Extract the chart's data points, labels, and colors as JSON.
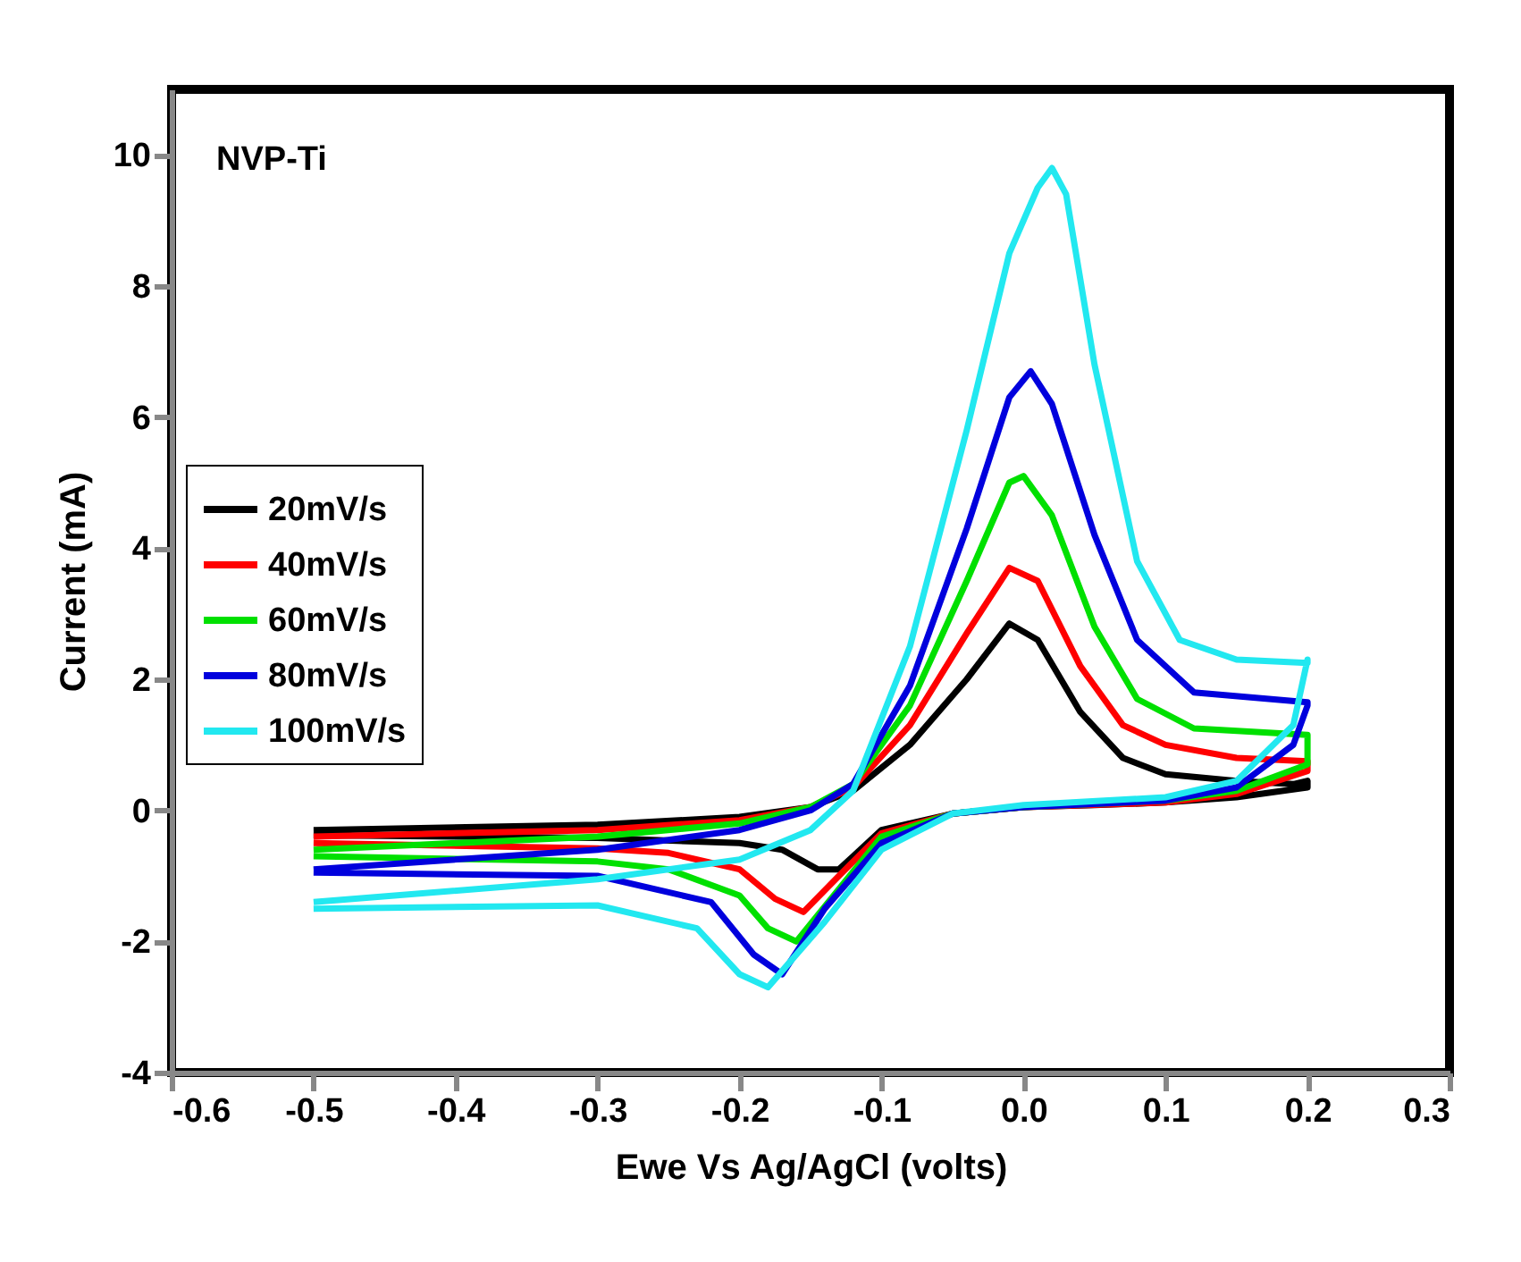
{
  "chart_data": {
    "type": "line",
    "xlabel": "Ewe Vs Ag/AgCl (volts)",
    "ylabel": "Current (mA)",
    "annotations": [
      "NVP-Ti"
    ],
    "xlim": [
      -0.6,
      0.3
    ],
    "xticks": [
      -0.6,
      -0.5,
      -0.4,
      -0.3,
      -0.2,
      -0.1,
      {
        "value": 0,
        "label": "0.0"
      },
      0.1,
      0.2,
      0.3
    ],
    "ylim": [
      -4,
      11
    ],
    "yticks": [
      -4,
      -2,
      0,
      2,
      4,
      6,
      8,
      10
    ],
    "grid": false,
    "legend": "left",
    "marker": "none",
    "line_style": "solid",
    "series": [
      {
        "name": "20mV/s",
        "color": "#000000",
        "x": [
          -0.5,
          -0.3,
          -0.2,
          -0.15,
          -0.12,
          -0.08,
          -0.04,
          -0.01,
          0.01,
          0.04,
          0.07,
          0.1,
          0.15,
          0.19,
          0.2,
          0.2,
          0.15,
          0.1,
          0.05,
          0.0,
          -0.05,
          -0.1,
          -0.12,
          -0.13,
          -0.145,
          -0.17,
          -0.2,
          -0.3,
          -0.5
        ],
        "values": [
          -0.3,
          -0.22,
          -0.1,
          0.05,
          0.3,
          1.0,
          2.0,
          2.85,
          2.6,
          1.5,
          0.8,
          0.55,
          0.45,
          0.4,
          0.45,
          0.35,
          0.2,
          0.12,
          0.08,
          0.05,
          -0.05,
          -0.3,
          -0.7,
          -0.9,
          -0.9,
          -0.6,
          -0.5,
          -0.42,
          -0.38
        ]
      },
      {
        "name": "40mV/s",
        "color": "#ff0000",
        "x": [
          -0.5,
          -0.3,
          -0.2,
          -0.15,
          -0.12,
          -0.08,
          -0.04,
          -0.01,
          0.01,
          0.04,
          0.07,
          0.1,
          0.15,
          0.2,
          0.2,
          0.15,
          0.1,
          0.0,
          -0.05,
          -0.1,
          -0.13,
          -0.155,
          -0.175,
          -0.2,
          -0.25,
          -0.3,
          -0.5
        ],
        "values": [
          -0.4,
          -0.3,
          -0.15,
          0.05,
          0.35,
          1.3,
          2.7,
          3.7,
          3.5,
          2.2,
          1.3,
          1.0,
          0.8,
          0.75,
          0.6,
          0.25,
          0.12,
          0.05,
          -0.05,
          -0.35,
          -1.0,
          -1.55,
          -1.35,
          -0.9,
          -0.65,
          -0.58,
          -0.5
        ]
      },
      {
        "name": "60mV/s",
        "color": "#00e000",
        "x": [
          -0.5,
          -0.3,
          -0.2,
          -0.15,
          -0.12,
          -0.08,
          -0.04,
          -0.01,
          0.0,
          0.02,
          0.05,
          0.08,
          0.12,
          0.2,
          0.2,
          0.15,
          0.1,
          0.0,
          -0.05,
          -0.1,
          -0.13,
          -0.16,
          -0.18,
          -0.2,
          -0.25,
          -0.3,
          -0.5
        ],
        "values": [
          -0.6,
          -0.4,
          -0.2,
          0.05,
          0.4,
          1.6,
          3.5,
          5.0,
          5.1,
          4.5,
          2.8,
          1.7,
          1.25,
          1.15,
          0.7,
          0.3,
          0.15,
          0.05,
          -0.05,
          -0.4,
          -1.2,
          -2.0,
          -1.8,
          -1.3,
          -0.9,
          -0.78,
          -0.7
        ]
      },
      {
        "name": "80mV/s",
        "color": "#0000dd",
        "x": [
          -0.5,
          -0.3,
          -0.2,
          -0.15,
          -0.12,
          -0.08,
          -0.04,
          -0.01,
          0.005,
          0.02,
          0.05,
          0.08,
          0.12,
          0.2,
          0.2,
          0.19,
          0.15,
          0.1,
          0.0,
          -0.05,
          -0.1,
          -0.14,
          -0.17,
          -0.19,
          -0.22,
          -0.3,
          -0.5
        ],
        "values": [
          -0.9,
          -0.6,
          -0.3,
          0.0,
          0.4,
          1.9,
          4.3,
          6.3,
          6.7,
          6.2,
          4.2,
          2.6,
          1.8,
          1.65,
          1.6,
          1.0,
          0.35,
          0.15,
          0.05,
          -0.05,
          -0.5,
          -1.5,
          -2.5,
          -2.2,
          -1.4,
          -1.0,
          -0.95
        ]
      },
      {
        "name": "100mV/s",
        "color": "#22e8f0",
        "x": [
          -0.5,
          -0.3,
          -0.2,
          -0.15,
          -0.12,
          -0.08,
          -0.04,
          -0.01,
          0.01,
          0.02,
          0.03,
          0.05,
          0.08,
          0.11,
          0.15,
          0.2,
          0.2,
          0.19,
          0.15,
          0.1,
          0.0,
          -0.05,
          -0.1,
          -0.14,
          -0.18,
          -0.2,
          -0.23,
          -0.3,
          -0.5
        ],
        "values": [
          -1.4,
          -1.05,
          -0.75,
          -0.3,
          0.3,
          2.5,
          5.8,
          8.5,
          9.5,
          9.8,
          9.4,
          6.8,
          3.8,
          2.6,
          2.3,
          2.25,
          2.3,
          1.3,
          0.45,
          0.2,
          0.08,
          -0.05,
          -0.6,
          -1.7,
          -2.7,
          -2.5,
          -1.8,
          -1.45,
          -1.5
        ]
      }
    ]
  }
}
